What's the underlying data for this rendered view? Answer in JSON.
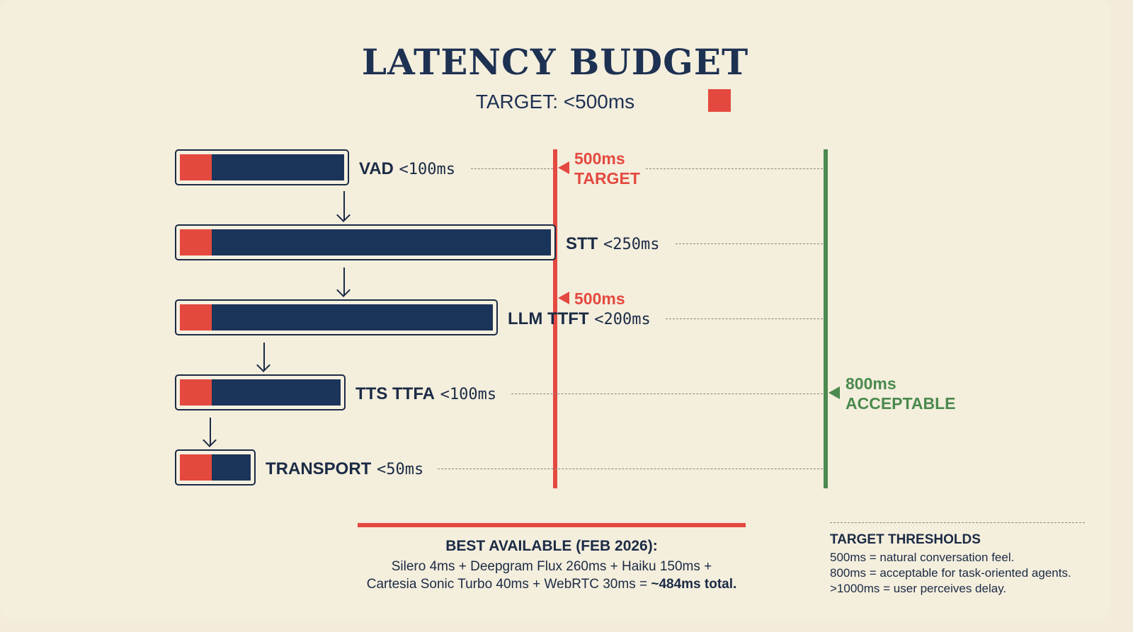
{
  "header": {
    "title": "LATENCY BUDGET",
    "subtitle": "TARGET: <500ms"
  },
  "colors": {
    "accent_red": "#e4493f",
    "navy": "#1b3459",
    "green": "#4a8a4e",
    "background": "#f4eedd"
  },
  "stages": [
    {
      "name": "VAD",
      "limit": "<100ms"
    },
    {
      "name": "STT",
      "limit": "<250ms"
    },
    {
      "name": "LLM TTFT",
      "limit": "<200ms"
    },
    {
      "name": "TTS TTFA",
      "limit": "<100ms"
    },
    {
      "name": "TRANSPORT",
      "limit": "<50ms"
    }
  ],
  "markers": {
    "target": {
      "value": "500ms",
      "label": "TARGET",
      "second_value": "500ms"
    },
    "acceptable": {
      "value": "800ms",
      "label": "ACCEPTABLE"
    }
  },
  "best": {
    "title": "BEST AVAILABLE (FEB 2026):",
    "line1": "Silero 4ms + Deepgram Flux 260ms + Haiku 150ms +",
    "line2": "Cartesia Sonic Turbo 40ms + WebRTC 30ms = ",
    "total": "~484ms total."
  },
  "thresholds": {
    "title": "TARGET THRESHOLDS",
    "items": [
      "500ms = natural conversation feel.",
      "800ms = acceptable for task-oriented agents.",
      ">1000ms = user perceives delay."
    ]
  }
}
